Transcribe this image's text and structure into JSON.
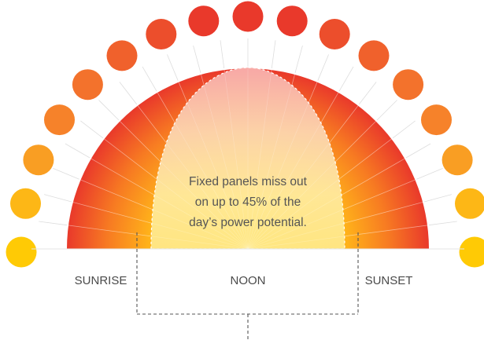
{
  "message": {
    "line1": "Fixed panels miss out",
    "line2": "on up to 45% of the",
    "line3": "day’s power potential."
  },
  "labels": {
    "sunrise": "SUNRISE",
    "noon": "NOON",
    "sunset": "SUNSET"
  },
  "colors": {
    "sun_dots": [
      "#FFCA05",
      "#FDB716",
      "#F99E23",
      "#F6822A",
      "#F3722C",
      "#F0612C",
      "#EC4E2C",
      "#E9392B",
      "#E9392B",
      "#E9392B",
      "#EC4E2C",
      "#F0612C",
      "#F3722C",
      "#F6822A",
      "#F99E23",
      "#FDB716",
      "#FFCA05"
    ],
    "arc_outer": "#E9392B",
    "arc_mid": "#F98A1E",
    "arc_inner": "#FFC21A",
    "lens_light": "#FFF0A8",
    "lens_pink": "#F9B9B4",
    "label_text": "#4A4A4A",
    "dashed_line": "#555555"
  }
}
